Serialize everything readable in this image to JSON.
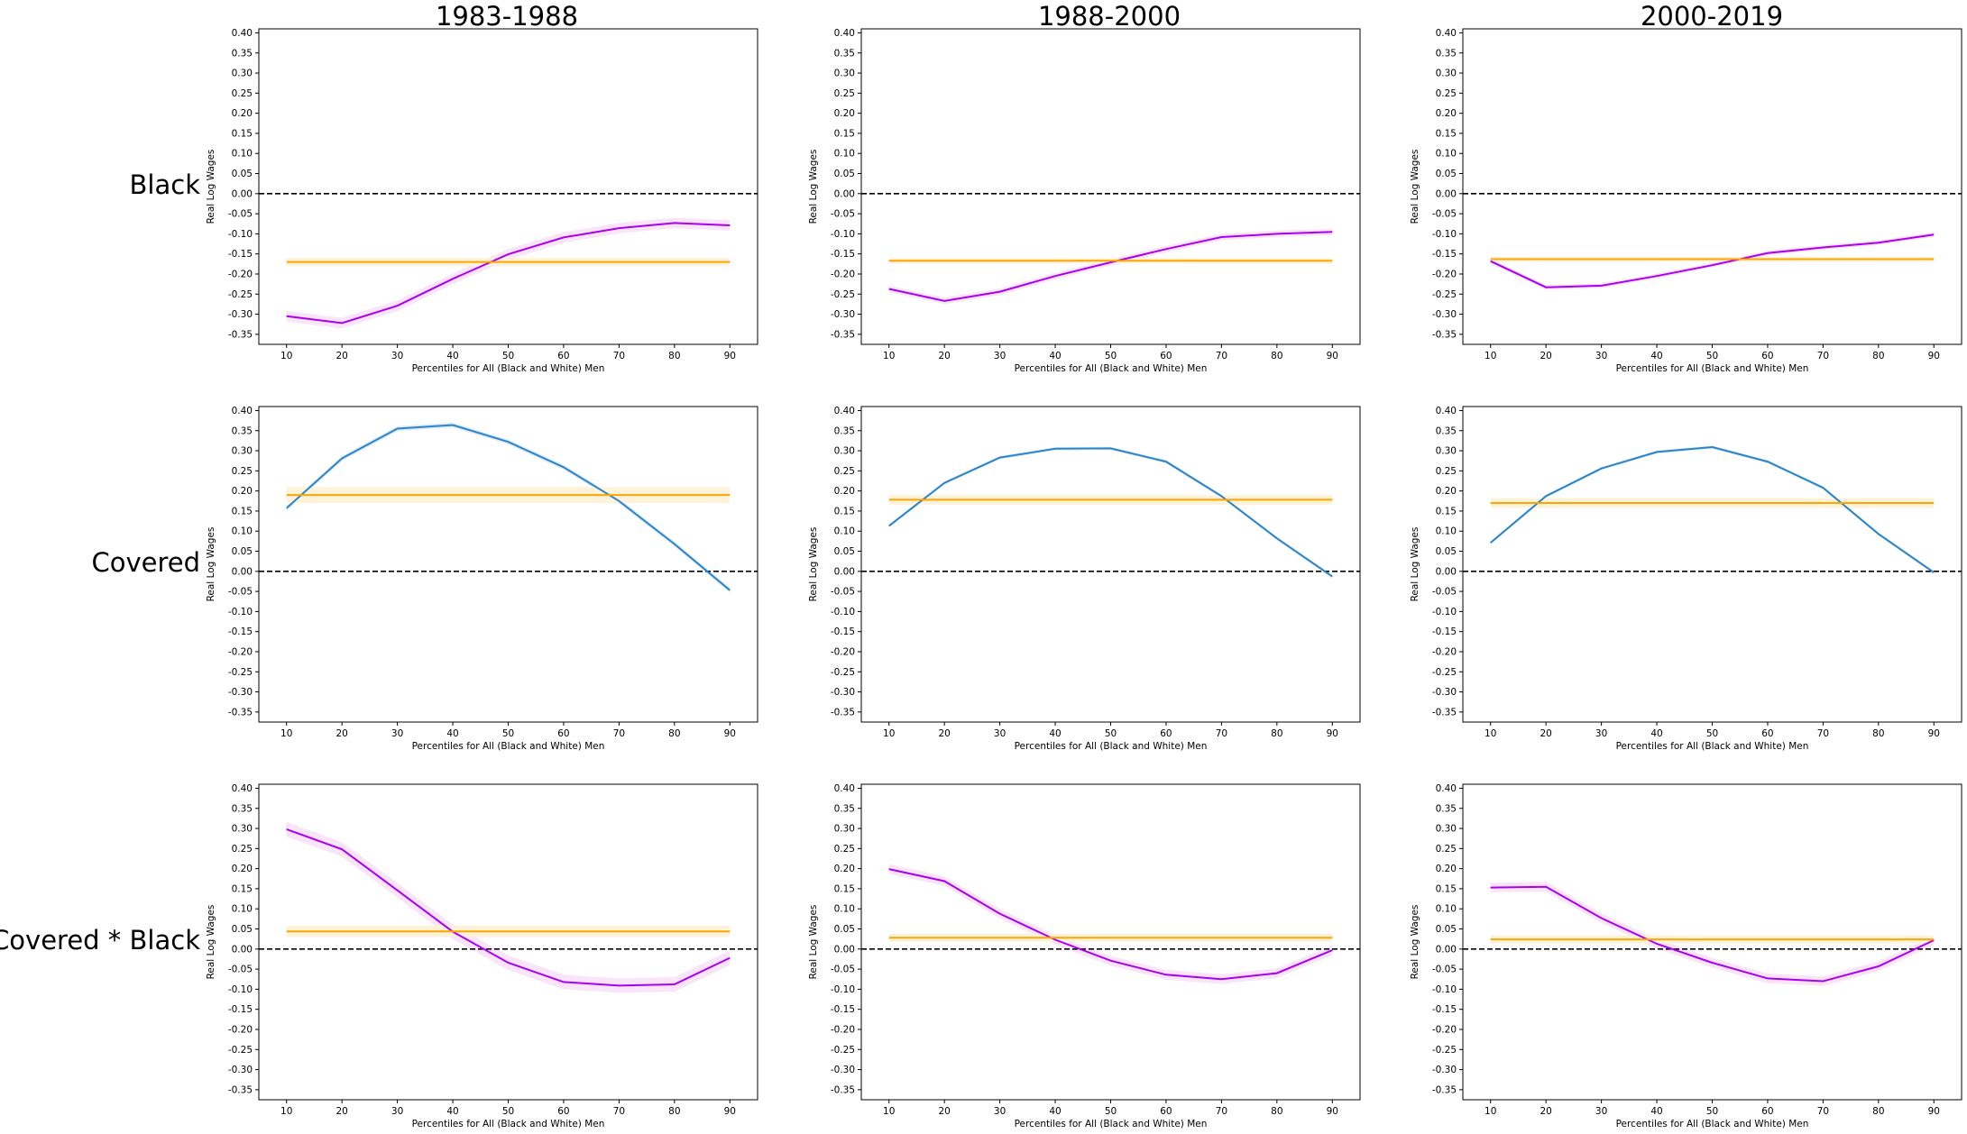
{
  "column_titles": [
    "1983-1988",
    "1988-2000",
    "2000-2019"
  ],
  "row_labels": [
    "Black",
    "Covered",
    "Covered * Black"
  ],
  "colors": {
    "line_black": "#aa00ee",
    "line_covered": "#2b85c8",
    "mean_line": "#ffa500",
    "mean_band": "#fff1d6",
    "purple_band": "#f6d9f6",
    "blue_band": "#cfe3f3",
    "zero_line": "#000000"
  },
  "chart_data": [
    {
      "type": "line",
      "row": "Black",
      "period": "1983-1988",
      "xlabel": "Percentiles for All (Black and White) Men",
      "ylabel": "Real Log Wages",
      "x": [
        10,
        20,
        30,
        40,
        50,
        60,
        70,
        80,
        90
      ],
      "xlim": [
        5,
        95
      ],
      "ylim": [
        -0.375,
        0.41
      ],
      "yticks": [
        -0.35,
        -0.3,
        -0.25,
        -0.2,
        -0.15,
        -0.1,
        -0.05,
        0.0,
        0.05,
        0.1,
        0.15,
        0.2,
        0.25,
        0.3,
        0.35,
        0.4
      ],
      "zero_line": true,
      "grid": false,
      "series": [
        {
          "role": "estimate",
          "color": "#aa00ee",
          "values": [
            -0.305,
            -0.322,
            -0.279,
            -0.212,
            -0.151,
            -0.109,
            -0.086,
            -0.073,
            -0.079
          ],
          "ci_halfwidth": 0.013
        },
        {
          "role": "mean",
          "color": "#ffa500",
          "values": [
            -0.17,
            -0.17,
            -0.17,
            -0.17,
            -0.17,
            -0.17,
            -0.17,
            -0.17,
            -0.17
          ],
          "ci_halfwidth": 0.01
        }
      ]
    },
    {
      "type": "line",
      "row": "Black",
      "period": "1988-2000",
      "xlabel": "Percentiles for All (Black and White) Men",
      "ylabel": "Real Log Wages",
      "x": [
        10,
        20,
        30,
        40,
        50,
        60,
        70,
        80,
        90
      ],
      "xlim": [
        5,
        95
      ],
      "ylim": [
        -0.375,
        0.41
      ],
      "yticks": [
        -0.35,
        -0.3,
        -0.25,
        -0.2,
        -0.15,
        -0.1,
        -0.05,
        0.0,
        0.05,
        0.1,
        0.15,
        0.2,
        0.25,
        0.3,
        0.35,
        0.4
      ],
      "zero_line": true,
      "grid": false,
      "series": [
        {
          "role": "estimate",
          "color": "#aa00ee",
          "values": [
            -0.237,
            -0.267,
            -0.244,
            -0.205,
            -0.171,
            -0.138,
            -0.108,
            -0.1,
            -0.095
          ],
          "ci_halfwidth": 0.008
        },
        {
          "role": "mean",
          "color": "#ffa500",
          "values": [
            -0.167,
            -0.167,
            -0.167,
            -0.167,
            -0.167,
            -0.167,
            -0.167,
            -0.167,
            -0.167
          ],
          "ci_halfwidth": 0.007
        }
      ]
    },
    {
      "type": "line",
      "row": "Black",
      "period": "2000-2019",
      "xlabel": "Percentiles for All (Black and White) Men",
      "ylabel": "Real Log Wages",
      "x": [
        10,
        20,
        30,
        40,
        50,
        60,
        70,
        80,
        90
      ],
      "xlim": [
        5,
        95
      ],
      "ylim": [
        -0.375,
        0.41
      ],
      "yticks": [
        -0.35,
        -0.3,
        -0.25,
        -0.2,
        -0.15,
        -0.1,
        -0.05,
        0.0,
        0.05,
        0.1,
        0.15,
        0.2,
        0.25,
        0.3,
        0.35,
        0.4
      ],
      "zero_line": true,
      "grid": false,
      "series": [
        {
          "role": "estimate",
          "color": "#aa00ee",
          "values": [
            -0.168,
            -0.233,
            -0.229,
            -0.205,
            -0.178,
            -0.148,
            -0.134,
            -0.122,
            -0.102
          ],
          "ci_halfwidth": 0.006
        },
        {
          "role": "mean",
          "color": "#ffa500",
          "values": [
            -0.163,
            -0.163,
            -0.163,
            -0.163,
            -0.163,
            -0.163,
            -0.163,
            -0.163,
            -0.163
          ],
          "ci_halfwidth": 0.006
        }
      ]
    },
    {
      "type": "line",
      "row": "Covered",
      "period": "1983-1988",
      "xlabel": "Percentiles for All (Black and White) Men",
      "ylabel": "Real Log Wages",
      "x": [
        10,
        20,
        30,
        40,
        50,
        60,
        70,
        80,
        90
      ],
      "xlim": [
        5,
        95
      ],
      "ylim": [
        -0.375,
        0.41
      ],
      "yticks": [
        -0.35,
        -0.3,
        -0.25,
        -0.2,
        -0.15,
        -0.1,
        -0.05,
        0.0,
        0.05,
        0.1,
        0.15,
        0.2,
        0.25,
        0.3,
        0.35,
        0.4
      ],
      "zero_line": true,
      "grid": false,
      "series": [
        {
          "role": "estimate",
          "color": "#2b85c8",
          "values": [
            0.157,
            0.281,
            0.355,
            0.364,
            0.322,
            0.259,
            0.175,
            0.068,
            -0.047
          ],
          "ci_halfwidth": 0.006
        },
        {
          "role": "mean",
          "color": "#ffa500",
          "values": [
            0.19,
            0.19,
            0.19,
            0.19,
            0.19,
            0.19,
            0.19,
            0.19,
            0.19
          ],
          "ci_halfwidth": 0.02
        }
      ]
    },
    {
      "type": "line",
      "row": "Covered",
      "period": "1988-2000",
      "xlabel": "Percentiles for All (Black and White) Men",
      "ylabel": "Real Log Wages",
      "x": [
        10,
        20,
        30,
        40,
        50,
        60,
        70,
        80,
        90
      ],
      "xlim": [
        5,
        95
      ],
      "ylim": [
        -0.375,
        0.41
      ],
      "yticks": [
        -0.35,
        -0.3,
        -0.25,
        -0.2,
        -0.15,
        -0.1,
        -0.05,
        0.0,
        0.05,
        0.1,
        0.15,
        0.2,
        0.25,
        0.3,
        0.35,
        0.4
      ],
      "zero_line": true,
      "grid": false,
      "series": [
        {
          "role": "estimate",
          "color": "#2b85c8",
          "values": [
            0.113,
            0.22,
            0.283,
            0.305,
            0.306,
            0.273,
            0.187,
            0.082,
            -0.013
          ],
          "ci_halfwidth": 0.004
        },
        {
          "role": "mean",
          "color": "#ffa500",
          "values": [
            0.178,
            0.178,
            0.178,
            0.178,
            0.178,
            0.178,
            0.178,
            0.178,
            0.178
          ],
          "ci_halfwidth": 0.012
        }
      ]
    },
    {
      "type": "line",
      "row": "Covered",
      "period": "2000-2019",
      "xlabel": "Percentiles for All (Black and White) Men",
      "ylabel": "Real Log Wages",
      "x": [
        10,
        20,
        30,
        40,
        50,
        60,
        70,
        80,
        90
      ],
      "xlim": [
        5,
        95
      ],
      "ylim": [
        -0.375,
        0.41
      ],
      "yticks": [
        -0.35,
        -0.3,
        -0.25,
        -0.2,
        -0.15,
        -0.1,
        -0.05,
        0.0,
        0.05,
        0.1,
        0.15,
        0.2,
        0.25,
        0.3,
        0.35,
        0.4
      ],
      "zero_line": true,
      "grid": false,
      "series": [
        {
          "role": "estimate",
          "color": "#2b85c8",
          "values": [
            0.071,
            0.187,
            0.256,
            0.297,
            0.309,
            0.273,
            0.208,
            0.093,
            -0.003
          ],
          "ci_halfwidth": 0.004
        },
        {
          "role": "mean",
          "color": "#ffa500",
          "values": [
            0.17,
            0.17,
            0.17,
            0.17,
            0.17,
            0.17,
            0.17,
            0.17,
            0.17
          ],
          "ci_halfwidth": 0.012
        }
      ]
    },
    {
      "type": "line",
      "row": "Covered * Black",
      "period": "1983-1988",
      "xlabel": "Percentiles for All (Black and White) Men",
      "ylabel": "Real Log Wages",
      "x": [
        10,
        20,
        30,
        40,
        50,
        60,
        70,
        80,
        90
      ],
      "xlim": [
        5,
        95
      ],
      "ylim": [
        -0.375,
        0.41
      ],
      "yticks": [
        -0.35,
        -0.3,
        -0.25,
        -0.2,
        -0.15,
        -0.1,
        -0.05,
        0.0,
        0.05,
        0.1,
        0.15,
        0.2,
        0.25,
        0.3,
        0.35,
        0.4
      ],
      "zero_line": true,
      "grid": false,
      "series": [
        {
          "role": "estimate",
          "color": "#aa00ee",
          "values": [
            0.298,
            0.248,
            0.146,
            0.043,
            -0.034,
            -0.082,
            -0.091,
            -0.088,
            -0.022
          ],
          "ci_halfwidth": 0.018
        },
        {
          "role": "mean",
          "color": "#ffa500",
          "values": [
            0.044,
            0.044,
            0.044,
            0.044,
            0.044,
            0.044,
            0.044,
            0.044,
            0.044
          ],
          "ci_halfwidth": 0.014
        }
      ]
    },
    {
      "type": "line",
      "row": "Covered * Black",
      "period": "1988-2000",
      "xlabel": "Percentiles for All (Black and White) Men",
      "ylabel": "Real Log Wages",
      "x": [
        10,
        20,
        30,
        40,
        50,
        60,
        70,
        80,
        90
      ],
      "xlim": [
        5,
        95
      ],
      "ylim": [
        -0.375,
        0.41
      ],
      "yticks": [
        -0.35,
        -0.3,
        -0.25,
        -0.2,
        -0.15,
        -0.1,
        -0.05,
        0.0,
        0.05,
        0.1,
        0.15,
        0.2,
        0.25,
        0.3,
        0.35,
        0.4
      ],
      "zero_line": true,
      "grid": false,
      "series": [
        {
          "role": "estimate",
          "color": "#aa00ee",
          "values": [
            0.199,
            0.169,
            0.088,
            0.023,
            -0.029,
            -0.064,
            -0.075,
            -0.06,
            -0.003
          ],
          "ci_halfwidth": 0.012
        },
        {
          "role": "mean",
          "color": "#ffa500",
          "values": [
            0.028,
            0.028,
            0.028,
            0.028,
            0.028,
            0.028,
            0.028,
            0.028,
            0.028
          ],
          "ci_halfwidth": 0.01
        }
      ]
    },
    {
      "type": "line",
      "row": "Covered * Black",
      "period": "2000-2019",
      "xlabel": "Percentiles for All (Black and White) Men",
      "ylabel": "Real Log Wages",
      "x": [
        10,
        20,
        30,
        40,
        50,
        60,
        70,
        80,
        90
      ],
      "xlim": [
        5,
        95
      ],
      "ylim": [
        -0.375,
        0.41
      ],
      "yticks": [
        -0.35,
        -0.3,
        -0.25,
        -0.2,
        -0.15,
        -0.1,
        -0.05,
        0.0,
        0.05,
        0.1,
        0.15,
        0.2,
        0.25,
        0.3,
        0.35,
        0.4
      ],
      "zero_line": true,
      "grid": false,
      "series": [
        {
          "role": "estimate",
          "color": "#aa00ee",
          "values": [
            0.153,
            0.155,
            0.077,
            0.013,
            -0.034,
            -0.073,
            -0.08,
            -0.043,
            0.022
          ],
          "ci_halfwidth": 0.012
        },
        {
          "role": "mean",
          "color": "#ffa500",
          "values": [
            0.024,
            0.024,
            0.024,
            0.024,
            0.024,
            0.024,
            0.024,
            0.024,
            0.024
          ],
          "ci_halfwidth": 0.01
        }
      ]
    }
  ]
}
